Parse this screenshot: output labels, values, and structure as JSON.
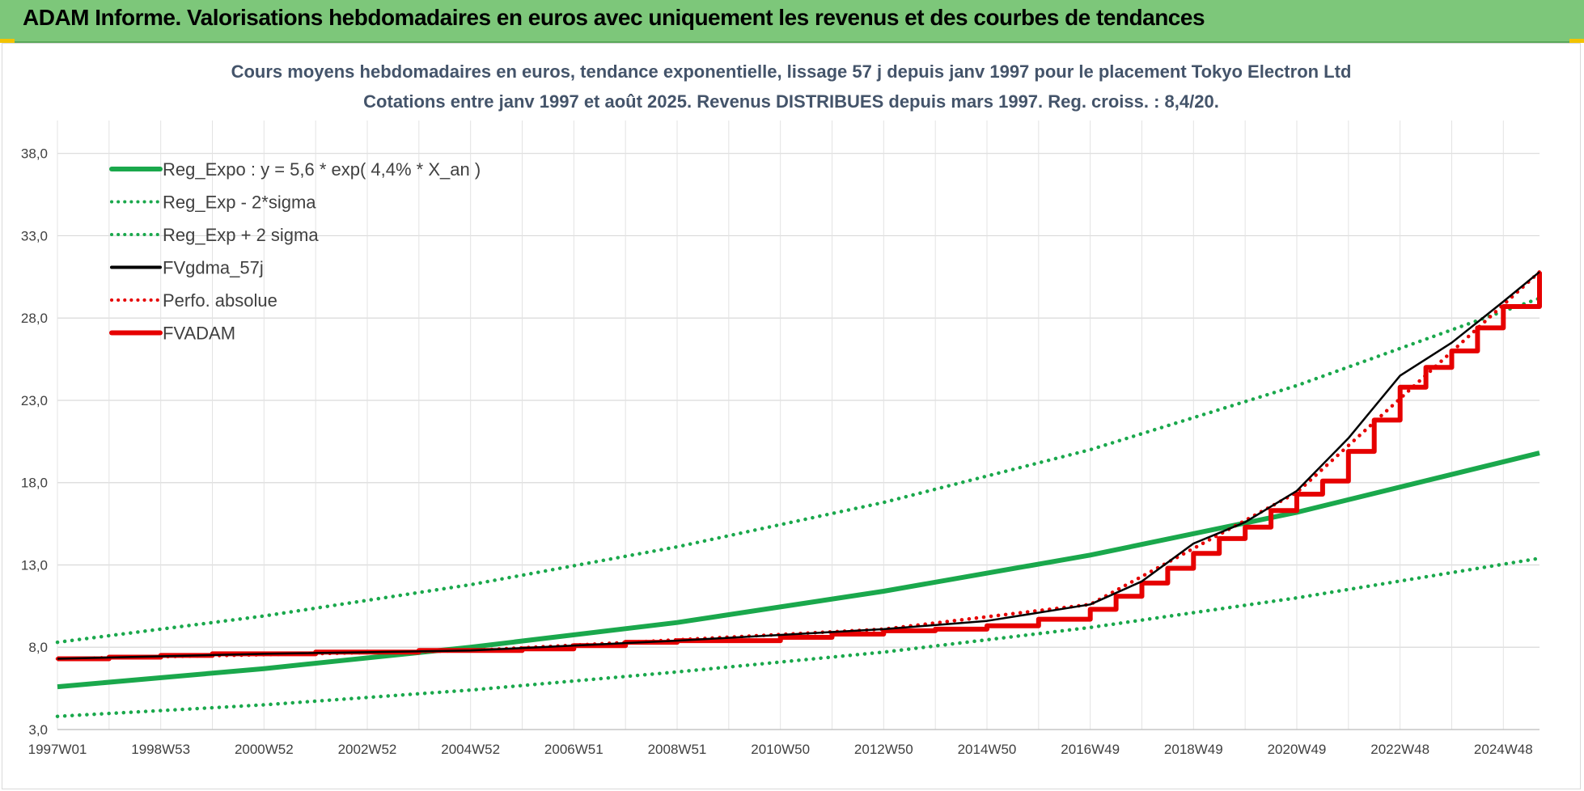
{
  "banner": {
    "title": "ADAM Informe. Valorisations hebdomadaires en euros avec uniquement les revenus et des courbes de tendances"
  },
  "chart_data": {
    "type": "line",
    "title": "Cours moyens hebdomadaires en euros, tendance exponentielle, lissage 57 j depuis janv 1997 pour le placement Tokyo Electron Ltd",
    "subtitle": "Cotations entre janv 1997 et août 2025.  Revenus DISTRIBUES depuis mars 1997. Reg. croiss. : 8,4/20.",
    "xlabel": "",
    "ylabel": "",
    "ylim": [
      3.0,
      40.0
    ],
    "y_ticks": [
      "3,0",
      "8,0",
      "13,0",
      "18,0",
      "23,0",
      "28,0",
      "33,0",
      "38,0"
    ],
    "y_tick_values": [
      3,
      8,
      13,
      18,
      23,
      28,
      33,
      38
    ],
    "x_ticks": [
      "1997W01",
      "1998W53",
      "2000W52",
      "2002W52",
      "2004W52",
      "2006W51",
      "2008W51",
      "2010W50",
      "2012W50",
      "2014W50",
      "2016W49",
      "2018W49",
      "2020W49",
      "2022W48",
      "2024W48"
    ],
    "x_tick_years": [
      1997.0,
      1999.0,
      2001.0,
      2003.0,
      2005.0,
      2007.0,
      2009.0,
      2011.0,
      2013.0,
      2015.0,
      2017.0,
      2019.0,
      2021.0,
      2023.0,
      2025.0
    ],
    "xlim": [
      1997.0,
      2025.7
    ],
    "grid": true,
    "legend_placement": "top-left",
    "legend": [
      "Reg_Expo : y = 5,6 * exp( 4,4% *  X_an )",
      "Reg_Exp - 2*sigma",
      "Reg_Exp + 2 sigma",
      "FVgdma_57j",
      "Perfo. absolue",
      "FVADAM"
    ],
    "series": [
      {
        "name": "Reg_Expo : y = 5,6 * exp( 4,4% *  X_an )",
        "color": "#1aa84c",
        "style": "solid",
        "x": [
          1997.0,
          2001.0,
          2005.0,
          2009.0,
          2013.0,
          2017.0,
          2021.0,
          2025.7
        ],
        "values": [
          5.6,
          6.7,
          8.0,
          9.5,
          11.4,
          13.6,
          16.2,
          19.8
        ]
      },
      {
        "name": "Reg_Exp - 2*sigma",
        "color": "#1aa84c",
        "style": "dotted",
        "x": [
          1997.0,
          2001.0,
          2005.0,
          2009.0,
          2013.0,
          2017.0,
          2021.0,
          2025.7
        ],
        "values": [
          3.8,
          4.5,
          5.4,
          6.5,
          7.7,
          9.2,
          11.0,
          13.4
        ]
      },
      {
        "name": "Reg_Exp + 2 sigma",
        "color": "#1aa84c",
        "style": "dotted",
        "x": [
          1997.0,
          2001.0,
          2005.0,
          2009.0,
          2013.0,
          2017.0,
          2021.0,
          2025.7
        ],
        "values": [
          8.3,
          9.9,
          11.8,
          14.1,
          16.8,
          20.0,
          23.9,
          29.2
        ]
      },
      {
        "name": "FVgdma_57j",
        "color": "#000000",
        "style": "solid",
        "x": [
          1997.0,
          2001.0,
          2005.0,
          2009.0,
          2013.0,
          2015.0,
          2017.0,
          2018.0,
          2019.0,
          2020.0,
          2021.0,
          2022.0,
          2023.0,
          2024.0,
          2025.0,
          2025.7
        ],
        "values": [
          7.3,
          7.6,
          7.8,
          8.4,
          9.1,
          9.6,
          10.6,
          12.0,
          14.3,
          15.6,
          17.5,
          20.7,
          24.5,
          26.5,
          29.0,
          30.8
        ]
      },
      {
        "name": "Perfo. absolue",
        "color": "#e60000",
        "style": "dotted",
        "x": [
          1997.0,
          2005.0,
          2013.0,
          2017.0,
          2021.0,
          2025.7
        ],
        "values": [
          7.3,
          7.8,
          9.1,
          10.6,
          17.4,
          30.8
        ]
      },
      {
        "name": "FVADAM",
        "color": "#e60000",
        "style": "solid",
        "x": [
          1997.0,
          1998.0,
          1999.0,
          2000.0,
          2001.0,
          2002.0,
          2003.0,
          2004.0,
          2005.0,
          2006.0,
          2007.0,
          2008.0,
          2009.0,
          2010.0,
          2011.0,
          2012.0,
          2013.0,
          2014.0,
          2015.0,
          2016.0,
          2017.0,
          2017.5,
          2018.0,
          2018.5,
          2019.0,
          2019.5,
          2020.0,
          2020.5,
          2021.0,
          2021.5,
          2022.0,
          2022.5,
          2023.0,
          2023.5,
          2024.0,
          2024.5,
          2025.0,
          2025.7
        ],
        "values": [
          7.3,
          7.4,
          7.5,
          7.6,
          7.6,
          7.7,
          7.7,
          7.8,
          7.8,
          7.9,
          8.1,
          8.3,
          8.4,
          8.4,
          8.6,
          8.8,
          9.0,
          9.1,
          9.3,
          9.7,
          10.3,
          11.1,
          11.9,
          12.8,
          13.7,
          14.6,
          15.3,
          16.3,
          17.3,
          18.1,
          19.9,
          21.8,
          23.8,
          25.0,
          26.0,
          27.4,
          28.7,
          30.8
        ]
      }
    ]
  }
}
